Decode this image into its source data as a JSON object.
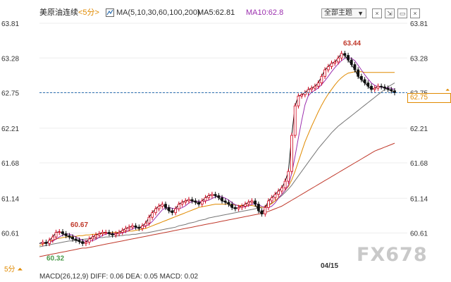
{
  "header": {
    "title": "美原油连续",
    "period": "<5分>",
    "ma_params": "MA(5,10,30,60,100,200)",
    "ma5": "MA5:62.81",
    "ma10": "MA10:62.8",
    "mode": "全部主题",
    "buttons": [
      "×",
      "⇲",
      "▭",
      "×"
    ]
  },
  "price_tag": "62.75",
  "footer": {
    "period": "5分 ⏶",
    "date": "04/15",
    "macd": "MACD(26,12,9) DIFF: 0.06  DEA: 0.05  MACD: 0.02"
  },
  "watermark": "FX678",
  "colors": {
    "up": "#d0021b",
    "down": "#111111",
    "ma5": "#111111",
    "ma10": "#9b2fae",
    "ma30": "#e08a00",
    "ma60": "#777777",
    "ma100": "#c0392b",
    "last": "#2a6db0"
  },
  "chart_data": {
    "type": "candlestick",
    "y_ticks": [
      "63.81",
      "63.28",
      "62.75",
      "62.21",
      "61.68",
      "61.14",
      "60.61"
    ],
    "ylim": [
      60.25,
      63.81
    ],
    "last_price": 62.75,
    "annotations": [
      {
        "label": "63.44",
        "value": 63.44,
        "kind": "high"
      },
      {
        "label": "60.67",
        "value": 60.67,
        "kind": "local-high"
      },
      {
        "label": "60.32",
        "value": 60.32,
        "kind": "low"
      }
    ],
    "close_path": [
      60.45,
      60.47,
      60.45,
      60.5,
      60.55,
      60.62,
      60.63,
      60.6,
      60.57,
      60.55,
      60.52,
      60.5,
      60.48,
      60.45,
      60.47,
      60.52,
      60.55,
      60.58,
      60.6,
      60.62,
      60.62,
      60.6,
      60.58,
      60.6,
      60.62,
      60.65,
      60.68,
      60.7,
      60.72,
      60.7,
      60.68,
      60.72,
      60.76,
      60.85,
      60.92,
      60.98,
      61.02,
      61.05,
      61.0,
      60.95,
      60.92,
      60.98,
      61.05,
      61.08,
      61.1,
      61.12,
      61.1,
      61.08,
      61.05,
      61.1,
      61.15,
      61.18,
      61.2,
      61.18,
      61.15,
      61.1,
      61.08,
      61.05,
      61.0,
      60.98,
      61.0,
      61.02,
      61.05,
      61.08,
      61.1,
      61.05,
      60.95,
      60.9,
      61.0,
      61.1,
      61.15,
      61.2,
      61.25,
      61.3,
      61.4,
      61.55,
      62.1,
      62.55,
      62.7,
      62.72,
      62.75,
      62.8,
      62.82,
      62.85,
      62.9,
      63.0,
      63.1,
      63.15,
      63.2,
      63.22,
      63.28,
      63.35,
      63.32,
      63.25,
      63.18,
      63.1,
      63.0,
      62.95,
      62.9,
      62.85,
      62.8,
      62.82,
      62.85,
      62.84,
      62.82,
      62.8,
      62.78,
      62.75
    ],
    "ma30": [
      60.42,
      60.44,
      60.46,
      60.48,
      60.5,
      60.52,
      60.53,
      60.54,
      60.55,
      60.55,
      60.56,
      60.56,
      60.57,
      60.57,
      60.58,
      60.58,
      60.59,
      60.59,
      60.6,
      60.6,
      60.61,
      60.61,
      60.62,
      60.62,
      60.62,
      60.63,
      60.63,
      60.64,
      60.64,
      60.65,
      60.66,
      60.67,
      60.68,
      60.7,
      60.72,
      60.74,
      60.76,
      60.78,
      60.8,
      60.82,
      60.84,
      60.86,
      60.88,
      60.9,
      60.92,
      60.94,
      60.96,
      60.98,
      61.0,
      61.01,
      61.02,
      61.03,
      61.04,
      61.05,
      61.05,
      61.05,
      61.05,
      61.05,
      61.04,
      61.04,
      61.03,
      61.03,
      61.03,
      61.03,
      61.03,
      61.02,
      61.01,
      61.0,
      61.01,
      61.03,
      61.06,
      61.1,
      61.15,
      61.2,
      61.26,
      61.32,
      61.42,
      61.55,
      61.7,
      61.85,
      62.0,
      62.12,
      62.24,
      62.35,
      62.46,
      62.56,
      62.65,
      62.73,
      62.8,
      62.87,
      62.93,
      62.98,
      63.02,
      63.05,
      63.06,
      63.07,
      63.07,
      63.07,
      63.06,
      63.06,
      63.06,
      63.06,
      63.06,
      63.06,
      63.06,
      63.06,
      63.06,
      63.06
    ],
    "ma60": [
      60.4,
      60.41,
      60.42,
      60.43,
      60.44,
      60.45,
      60.46,
      60.47,
      60.48,
      60.49,
      60.49,
      60.5,
      60.51,
      60.51,
      60.52,
      60.52,
      60.53,
      60.53,
      60.54,
      60.54,
      60.55,
      60.55,
      60.56,
      60.56,
      60.57,
      60.57,
      60.58,
      60.58,
      60.59,
      60.59,
      60.6,
      60.61,
      60.61,
      60.62,
      60.63,
      60.64,
      60.65,
      60.66,
      60.67,
      60.68,
      60.69,
      60.7,
      60.72,
      60.73,
      60.74,
      60.76,
      60.77,
      60.78,
      60.8,
      60.81,
      60.82,
      60.84,
      60.85,
      60.86,
      60.87,
      60.88,
      60.89,
      60.9,
      60.91,
      60.92,
      60.93,
      60.94,
      60.95,
      60.96,
      60.97,
      60.98,
      60.99,
      61.0,
      61.02,
      61.04,
      61.07,
      61.1,
      61.14,
      61.18,
      61.23,
      61.28,
      61.34,
      61.41,
      61.48,
      61.55,
      61.62,
      61.69,
      61.76,
      61.83,
      61.9,
      61.96,
      62.02,
      62.08,
      62.14,
      62.19,
      62.24,
      62.28,
      62.32,
      62.36,
      62.4,
      62.44,
      62.48,
      62.52,
      62.56,
      62.6,
      62.64,
      62.68,
      62.72,
      62.76,
      62.8,
      62.84,
      62.87,
      62.9
    ],
    "ma100": [
      60.25,
      60.26,
      60.27,
      60.28,
      60.29,
      60.3,
      60.31,
      60.32,
      60.33,
      60.34,
      60.35,
      60.36,
      60.37,
      60.38,
      60.38,
      60.39,
      60.4,
      60.41,
      60.42,
      60.43,
      60.44,
      60.45,
      60.46,
      60.47,
      60.48,
      60.49,
      60.5,
      60.51,
      60.52,
      60.53,
      60.54,
      60.55,
      60.56,
      60.57,
      60.58,
      60.59,
      60.6,
      60.61,
      60.62,
      60.63,
      60.64,
      60.65,
      60.66,
      60.67,
      60.68,
      60.69,
      60.7,
      60.71,
      60.72,
      60.73,
      60.74,
      60.75,
      60.76,
      60.77,
      60.78,
      60.79,
      60.8,
      60.81,
      60.82,
      60.83,
      60.84,
      60.85,
      60.86,
      60.87,
      60.88,
      60.89,
      60.9,
      60.91,
      60.92,
      60.94,
      60.96,
      60.98,
      61.0,
      61.02,
      61.05,
      61.08,
      61.11,
      61.14,
      61.17,
      61.2,
      61.23,
      61.26,
      61.29,
      61.32,
      61.35,
      61.38,
      61.41,
      61.44,
      61.47,
      61.5,
      61.53,
      61.56,
      61.59,
      61.62,
      61.65,
      61.68,
      61.71,
      61.74,
      61.77,
      61.8,
      61.83,
      61.86,
      61.88,
      61.9,
      61.92,
      61.94,
      61.96,
      61.98
    ],
    "ma10_tail": [
      63.1,
      63.2,
      63.28,
      63.3,
      63.25,
      63.18,
      63.1,
      63.02,
      62.96,
      62.92,
      62.9,
      62.9,
      62.89,
      62.88,
      62.86,
      62.84,
      62.82,
      62.8
    ]
  }
}
